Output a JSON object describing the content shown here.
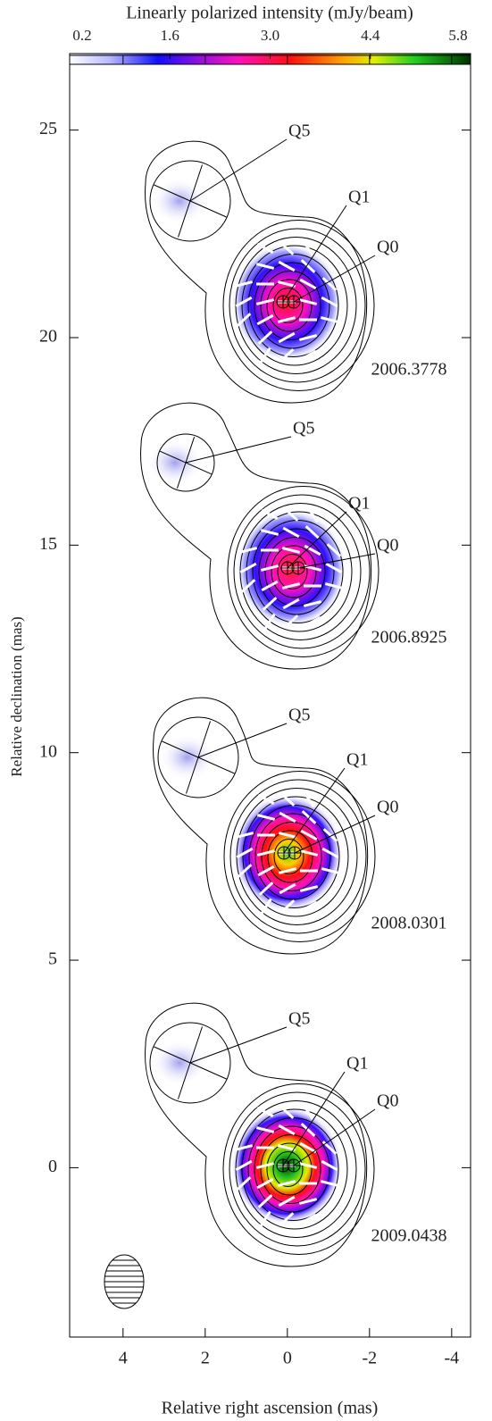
{
  "chart_data": {
    "type": "map",
    "colorbar_label": "Linearly polarized intensity (mJy/beam)",
    "clim": [
      0.2,
      5.8
    ],
    "cticks": [
      0.2,
      1.6,
      {
        "value": 3,
        "label": "3.0"
      },
      4.4,
      5.8
    ],
    "xlabel": "Relative  right ascension (mas)",
    "ylabel": "Relative declination (mas)",
    "xlim": [
      5.3,
      -4.46
    ],
    "xticks": [
      4,
      2,
      0,
      -2,
      -4
    ],
    "ylim": [
      -4.08,
      26.8
    ],
    "yticks": [
      0,
      5,
      10,
      15,
      20,
      25
    ],
    "panels": [
      {
        "epoch": "2006.3778",
        "components": [
          "Q5",
          "Q1",
          "Q0"
        ]
      },
      {
        "epoch": "2006.8925",
        "components": [
          "Q5",
          "Q1",
          "Q0"
        ]
      },
      {
        "epoch": "2008.0301",
        "components": [
          "Q5",
          "Q1",
          "Q0"
        ]
      },
      {
        "epoch": "2009.0438",
        "components": [
          "Q5",
          "Q1",
          "Q0"
        ]
      }
    ]
  }
}
